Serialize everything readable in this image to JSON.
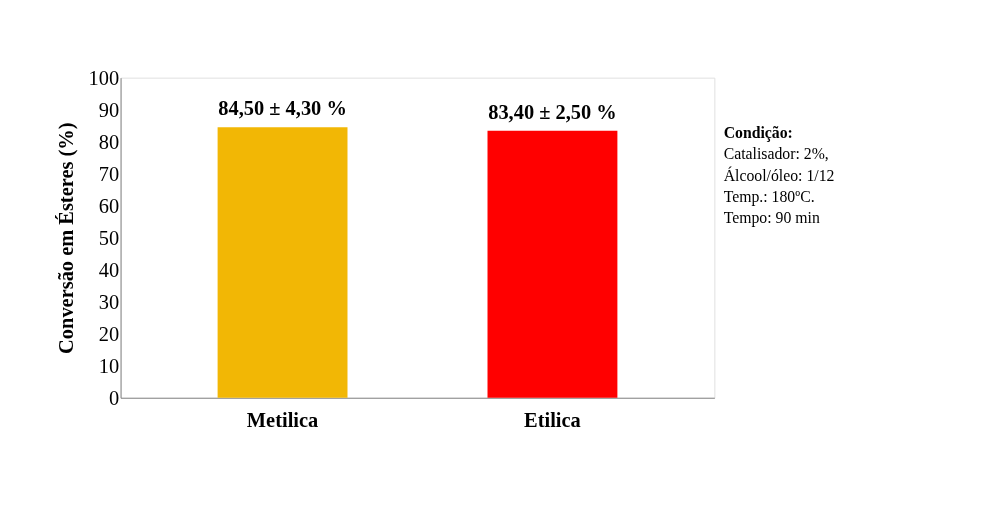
{
  "chart_data": {
    "type": "bar",
    "ylabel": "Conversão em Ésteres (%)",
    "categories": [
      "Metilica",
      "Etilica"
    ],
    "values": [
      84.5,
      83.4
    ],
    "colors": [
      "#f2b705",
      "#ff0000"
    ],
    "value_labels": [
      "84,50 ± 4,30 %",
      "83,40 ± 2,50 %"
    ],
    "ylim": [
      0,
      100
    ],
    "yticks": [
      0,
      10,
      20,
      30,
      40,
      50,
      60,
      70,
      80,
      90,
      100
    ],
    "grid": false,
    "annotations": [
      "Condição:",
      "Catalisador: 2%,",
      "Álcool/óleo: 1/12",
      "Temp.: 180ºC.",
      "Tempo: 90 min"
    ]
  }
}
